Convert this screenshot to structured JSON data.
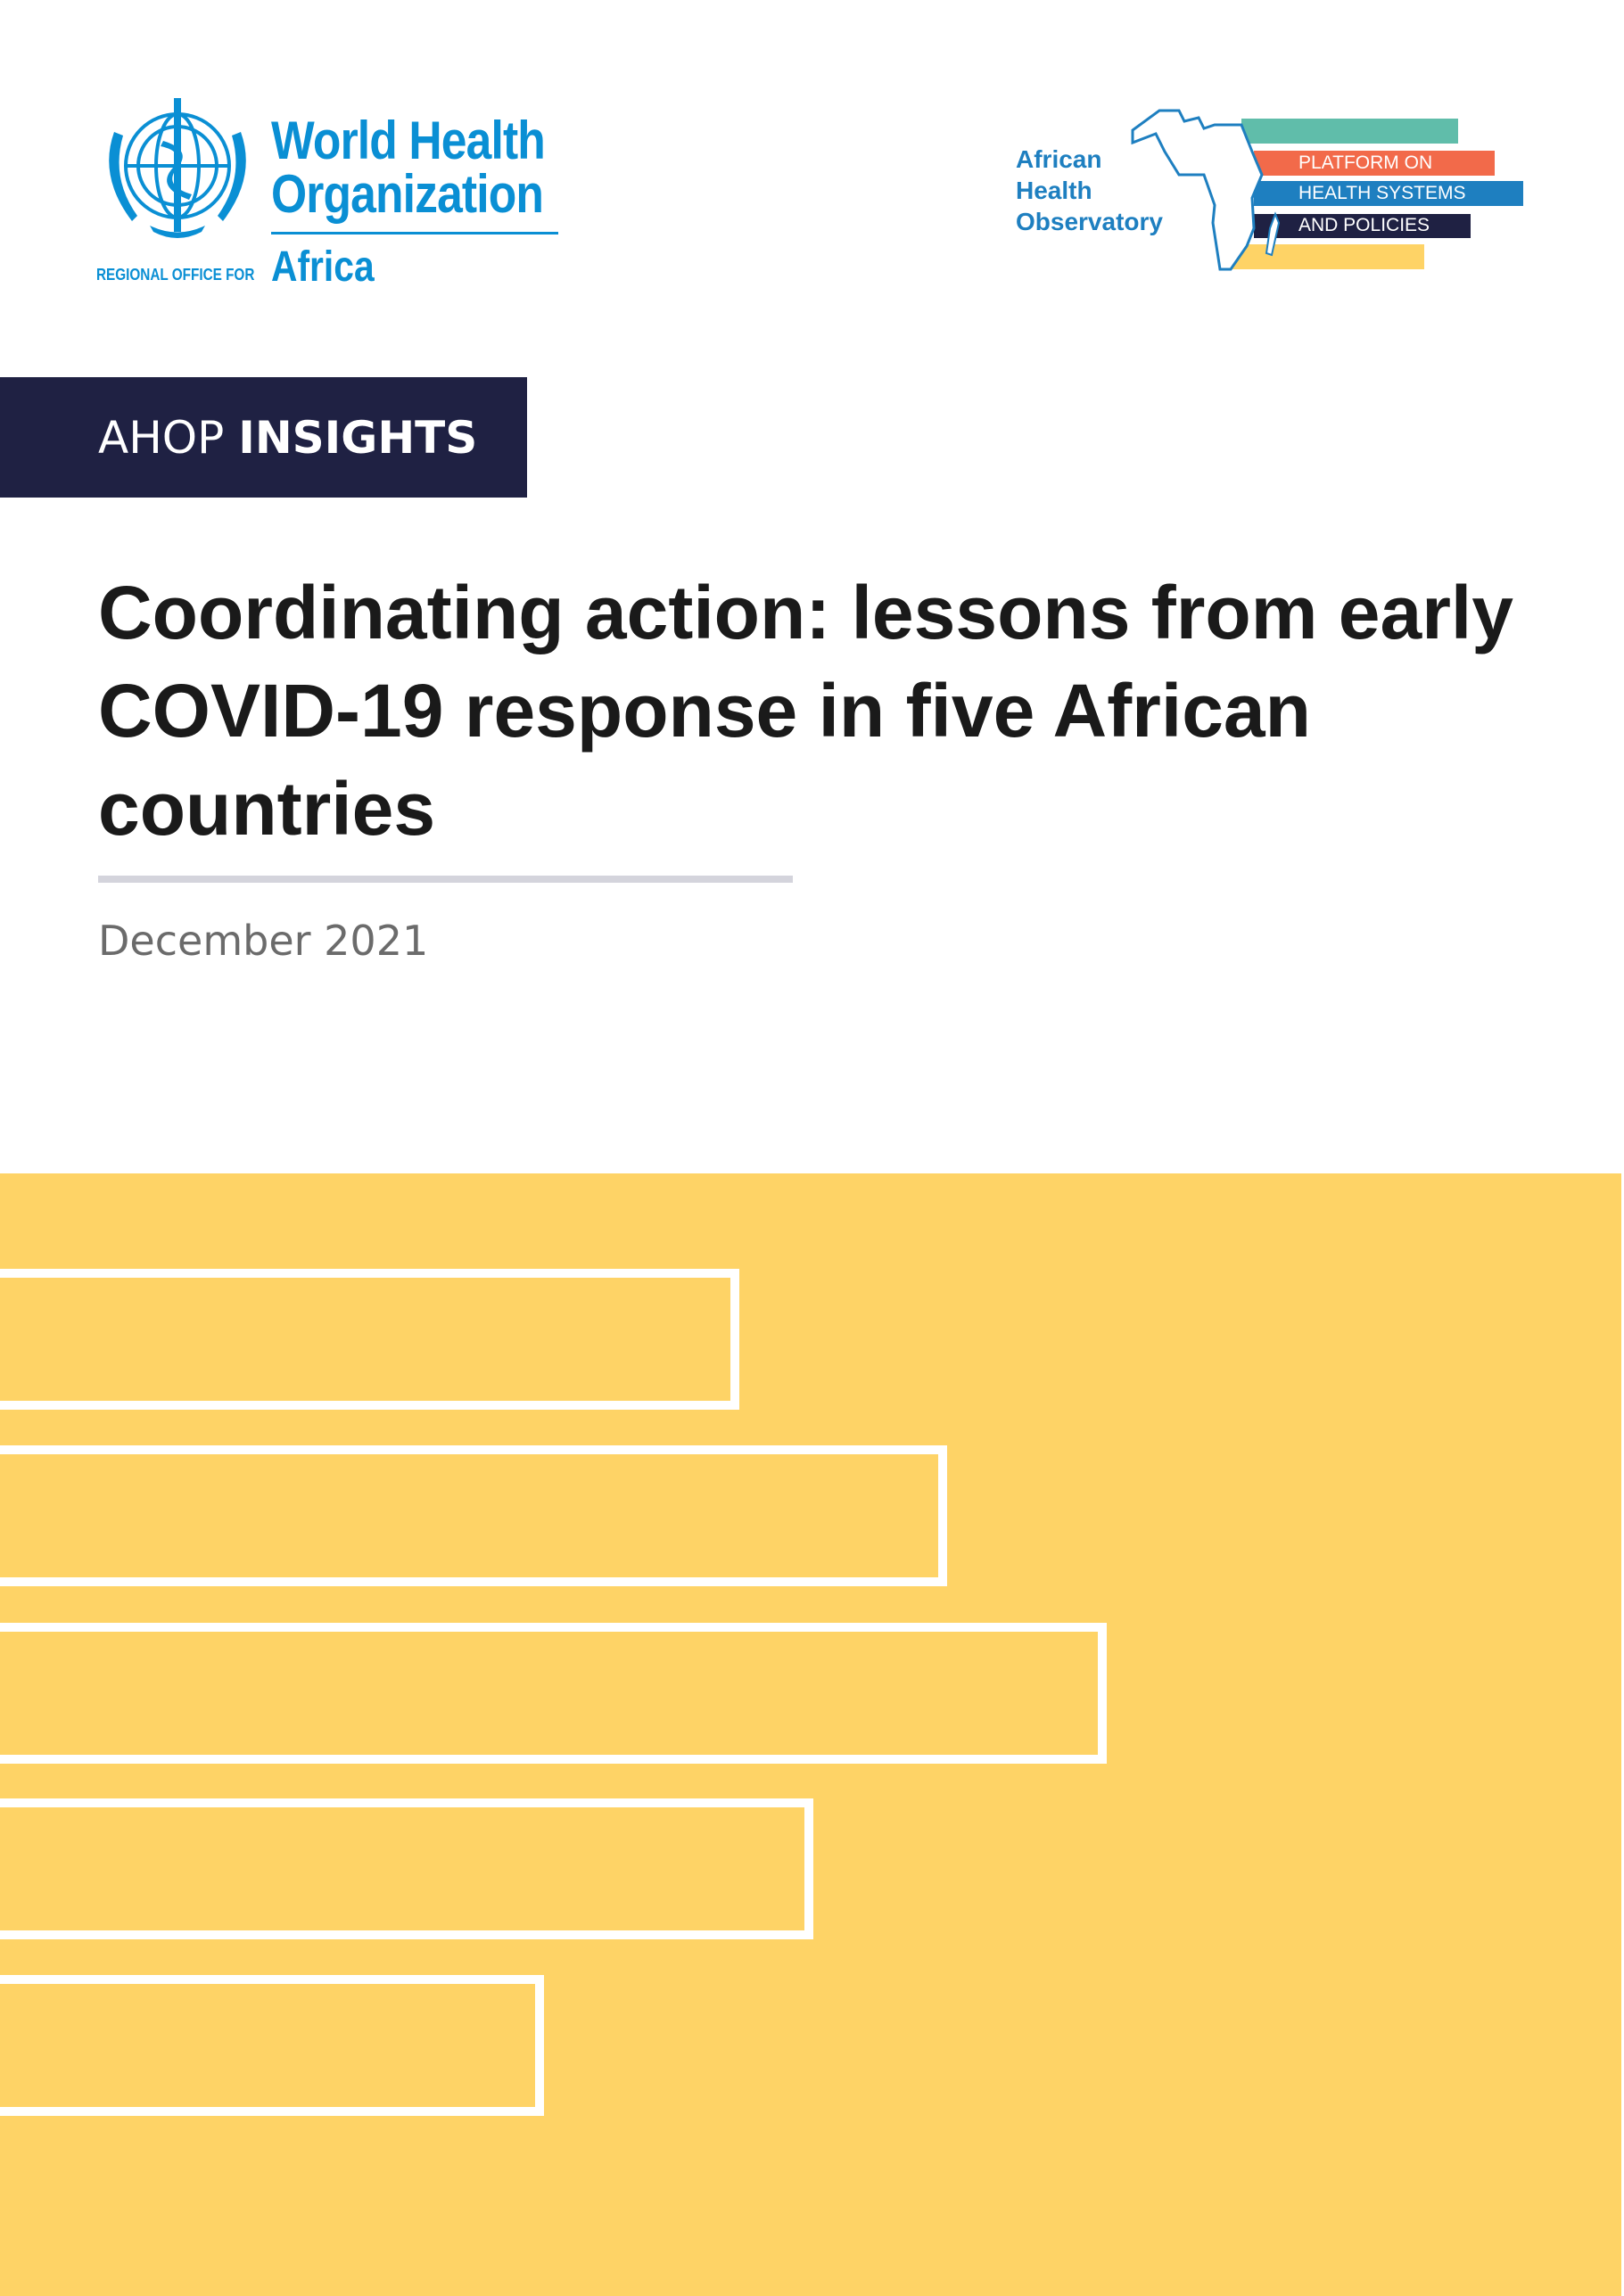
{
  "header": {
    "who_logo": {
      "line1": "World Health",
      "line2": "Organization",
      "regional": "REGIONAL OFFICE FOR",
      "region": "Africa",
      "color": "#0a8fd4"
    },
    "aho_logo": {
      "name_lines": [
        "African",
        "Health",
        "Observatory"
      ],
      "bar_lines": [
        "PLATFORM ON",
        "HEALTH SYSTEMS",
        "AND POLICIES"
      ],
      "colors": {
        "teal": "#60bdaa",
        "orange": "#f26a4a",
        "blue": "#1e7fc0",
        "navy": "#1f2143",
        "yellow": "#fed366"
      }
    }
  },
  "banner": {
    "prefix": "AHOP",
    "label": "INSIGHTS",
    "bg_color": "#1f2143"
  },
  "title": "Coordinating action: lessons from early COVID-19 response in five African countries",
  "date": "December 2021",
  "decoration": {
    "bg_color": "#fed366",
    "bar_count": 5
  }
}
